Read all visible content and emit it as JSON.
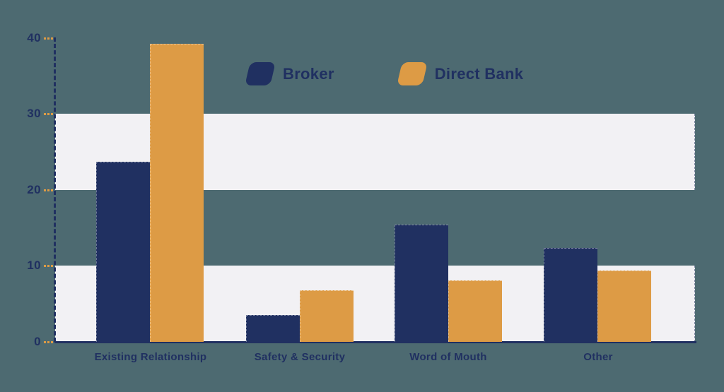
{
  "chart_data": {
    "type": "bar",
    "title": "",
    "categories": [
      "Existing Relationship",
      "Safety & Security",
      "Word of Mouth",
      "Other"
    ],
    "series": [
      {
        "name": "Broker",
        "color": "#203061",
        "values": [
          23.7,
          3.5,
          15.4,
          12.4
        ]
      },
      {
        "name": "Direct Bank",
        "color": "#dd9b45",
        "values": [
          39.3,
          6.8,
          8.1,
          9.4
        ]
      }
    ],
    "ylim": [
      0,
      40
    ],
    "yticks": [
      40,
      30,
      20,
      10,
      0
    ],
    "legend_position": "top-center",
    "grid": "alternating horizontal bands filled white for ranges 0-10 and 20-30",
    "band_ranges": [
      [
        20,
        30
      ],
      [
        0,
        10
      ]
    ],
    "colors": {
      "background": "#4d6a71",
      "band": "#f2f1f4",
      "axis": "#203061",
      "tick_dash": "#dd9b45"
    }
  }
}
